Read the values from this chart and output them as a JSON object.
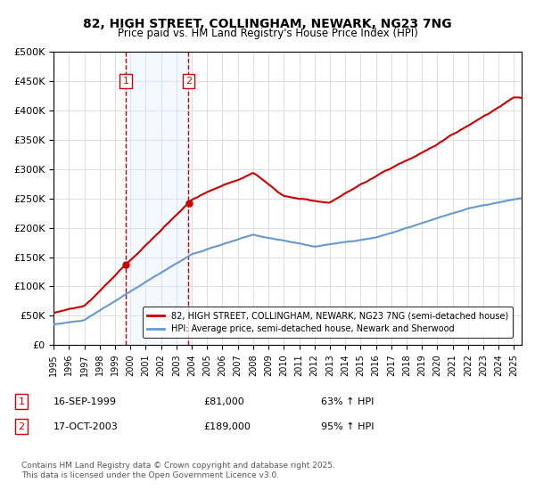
{
  "title": "82, HIGH STREET, COLLINGHAM, NEWARK, NG23 7NG",
  "subtitle": "Price paid vs. HM Land Registry's House Price Index (HPI)",
  "legend_line1": "82, HIGH STREET, COLLINGHAM, NEWARK, NG23 7NG (semi-detached house)",
  "legend_line2": "HPI: Average price, semi-detached house, Newark and Sherwood",
  "footnote": "Contains HM Land Registry data © Crown copyright and database right 2025.\nThis data is licensed under the Open Government Licence v3.0.",
  "sale1_label": "1",
  "sale1_date": "16-SEP-1999",
  "sale1_price": "£81,000",
  "sale1_hpi": "63% ↑ HPI",
  "sale1_year": 1999.71,
  "sale2_label": "2",
  "sale2_date": "17-OCT-2003",
  "sale2_price": "£189,000",
  "sale2_hpi": "95% ↑ HPI",
  "sale2_year": 2003.79,
  "red_color": "#cc0000",
  "blue_color": "#6699cc",
  "shade_color": "#ddeeff",
  "grid_color": "#dddddd",
  "background_color": "#ffffff",
  "ylim": [
    0,
    500000
  ],
  "xlim_start": 1995.0,
  "xlim_end": 2025.5
}
